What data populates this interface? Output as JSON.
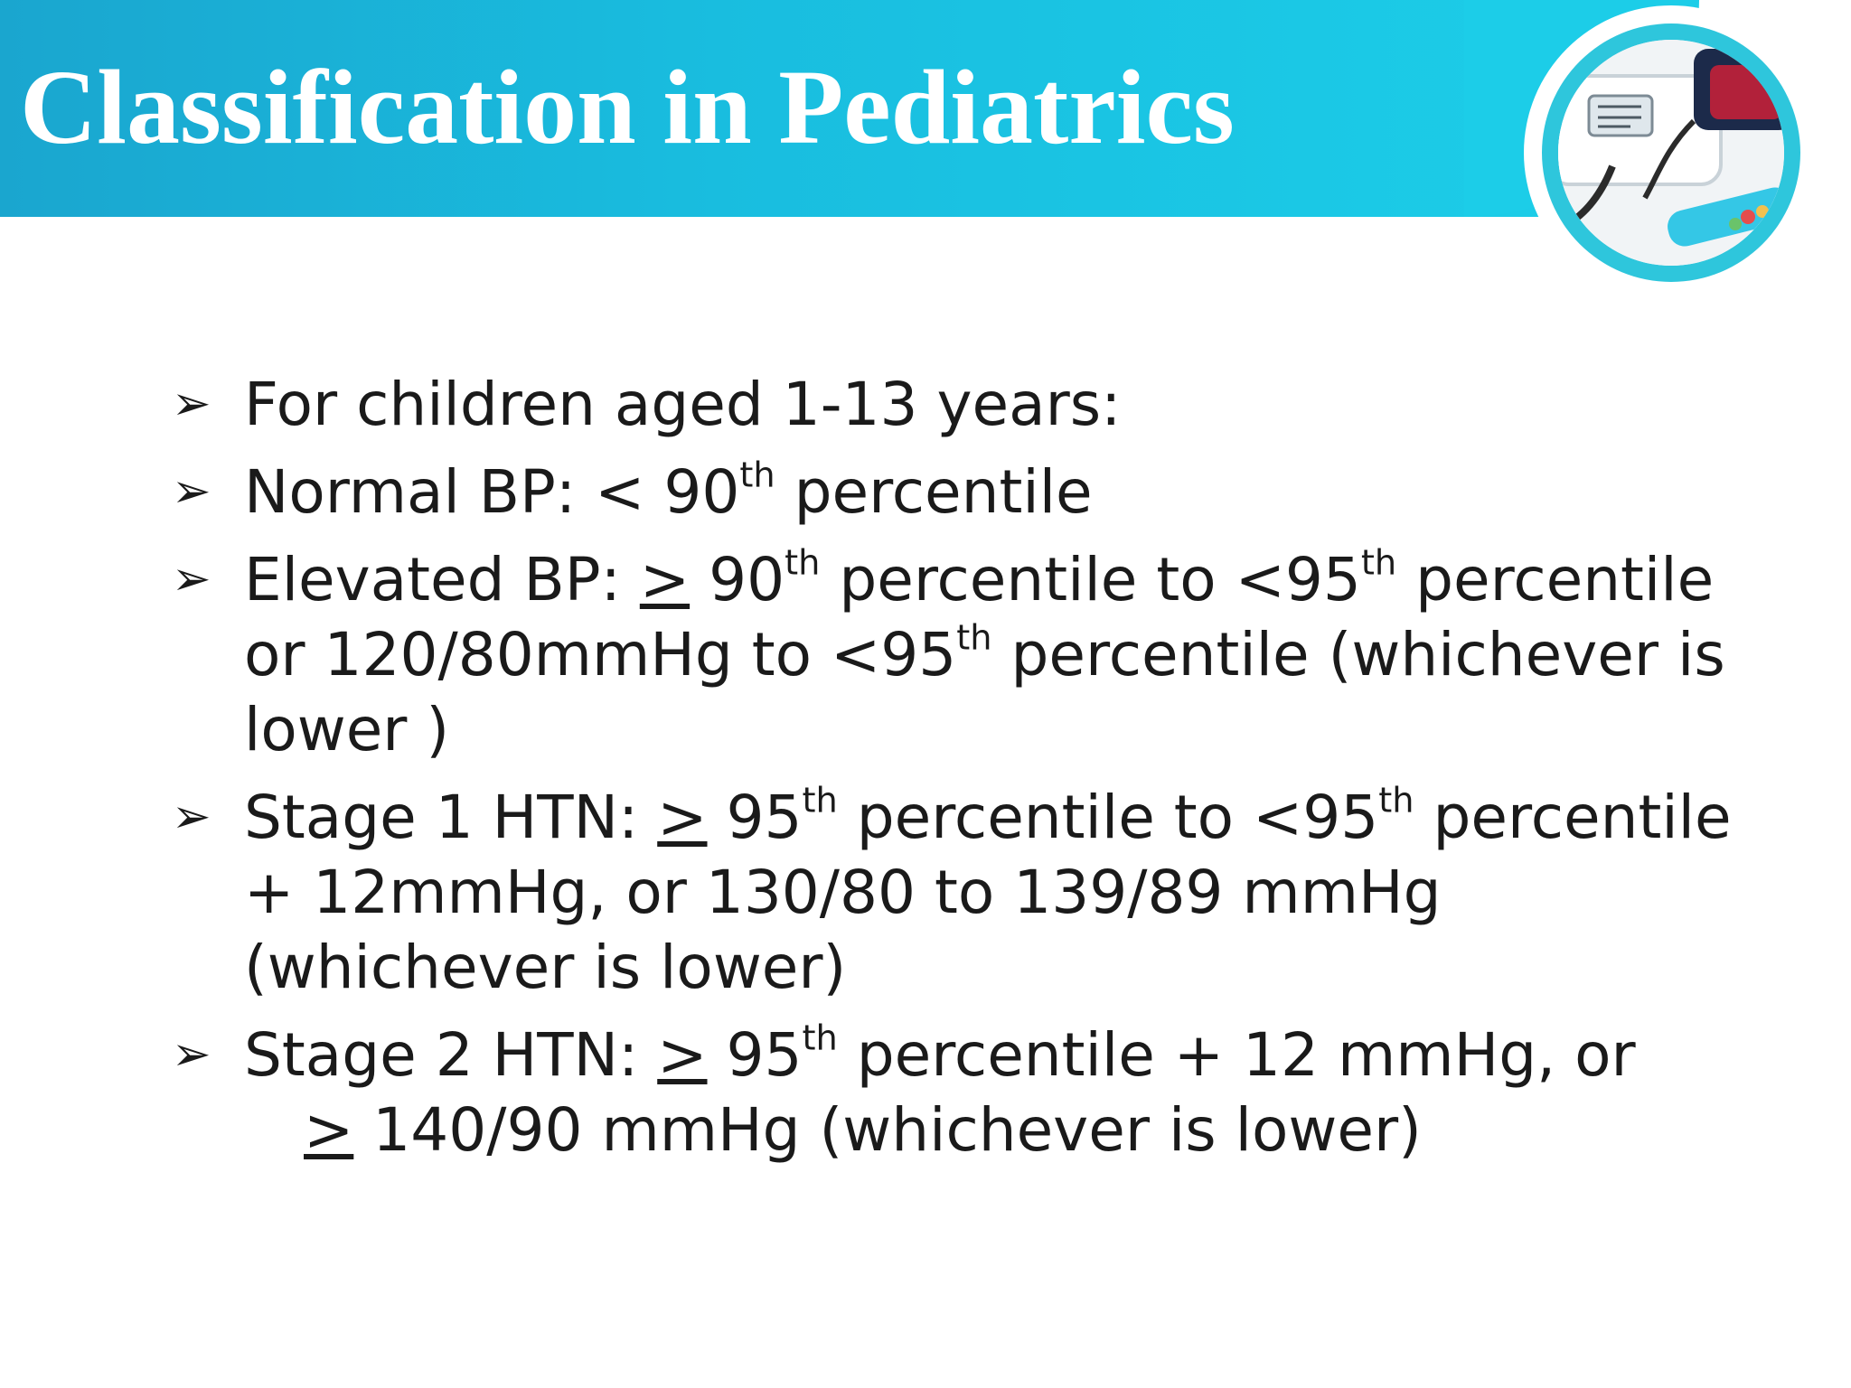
{
  "slide": {
    "title": "Classification in Pediatrics",
    "logo_icon": "blood-pressure-monitor-icon",
    "bullet_marker": "➢",
    "bullets": [
      {
        "text": "For children aged 1-13 years:"
      },
      {
        "p1": "Normal BP: < 90",
        "p1_sup": "th",
        "p2": " percentile"
      },
      {
        "p1": "Elevated BP: ",
        "ge": ">",
        "p2": " 90",
        "p2_sup": "th",
        "p3": " percentile to <95",
        "p3_sup": "th",
        "p4": " percentile or 120/80mmHg to <95",
        "p4_sup": "th",
        "p5": " percentile (whichever is lower )"
      },
      {
        "p1": "Stage 1 HTN: ",
        "ge": ">",
        "p2": " 95",
        "p2_sup": "th",
        "p3": " percentile to <95",
        "p3_sup": "th",
        "p4": " percentile + 12mmHg, or 130/80 to 139/89 mmHg (whichever is lower)"
      },
      {
        "p1": "Stage 2 HTN: ",
        "ge": ">",
        "p2": " 95",
        "p2_sup": "th",
        "p3": " percentile + 12 mmHg, or",
        "cont_ge": ">",
        "cont_text": " 140/90 mmHg (whichever is lower)"
      }
    ]
  },
  "colors": {
    "header": "#19bddf",
    "accent": "#2ec6dc",
    "text": "#1a1a1a"
  }
}
